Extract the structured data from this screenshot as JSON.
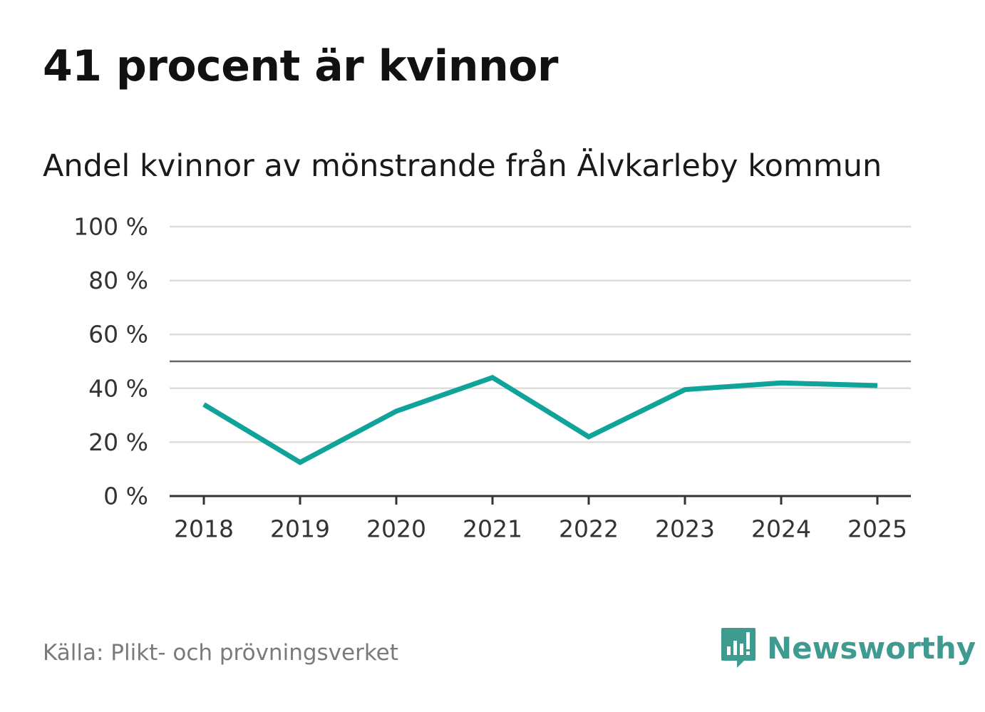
{
  "header": {
    "title": "41 procent är kvinnor",
    "subtitle": "Andel kvinnor av mönstrande från Älvkarleby kommun"
  },
  "chart_data": {
    "type": "line",
    "title": "41 procent är kvinnor",
    "subtitle": "Andel kvinnor av mönstrande från Älvkarleby kommun",
    "categories": [
      "2018",
      "2019",
      "2020",
      "2021",
      "2022",
      "2023",
      "2024",
      "2025"
    ],
    "series": [
      {
        "name": "Andel kvinnor",
        "values": [
          34,
          12.5,
          31.5,
          44,
          22,
          39.5,
          42,
          41
        ]
      }
    ],
    "y_ticks": [
      0,
      20,
      40,
      60,
      80,
      100
    ],
    "y_tick_labels": [
      "0 %",
      "20 %",
      "40 %",
      "60 %",
      "80 %",
      "100 %"
    ],
    "ylim": [
      0,
      100
    ],
    "reference_line": 50,
    "xlabel": "",
    "ylabel": "",
    "grid": true,
    "legend": "none"
  },
  "colors": {
    "line": "#10a39a",
    "grid": "#dddddd",
    "reference": "#666666",
    "axis": "#333333",
    "brand": "#3f9a90"
  },
  "footer": {
    "source": "Källa: Plikt- och prövningsverket",
    "brand_name": "Newsworthy",
    "brand_icon": "newsworthy-logo-icon"
  }
}
